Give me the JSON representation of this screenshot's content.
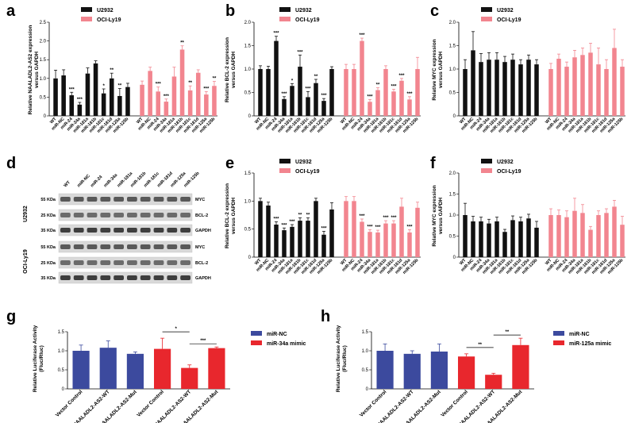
{
  "figure": {
    "panel_labels": [
      "a",
      "b",
      "c",
      "d",
      "e",
      "f",
      "g",
      "h"
    ]
  },
  "colors": {
    "u2932": "#111111",
    "ocily19": "#f2858f",
    "mirnc": "#3c4a9e",
    "mimic": "#e8272d"
  },
  "western_blot": {
    "lanes": [
      "WT",
      "miR-NC",
      "miR-24",
      "miR-34a",
      "miR-181a",
      "miR-181b",
      "miR-181c",
      "miR-181d",
      "miR-125a",
      "miR-125b"
    ],
    "groups": [
      {
        "name": "U2932",
        "rows": [
          {
            "kda": "55 KDa",
            "protein": "MYC"
          },
          {
            "kda": "25 KDa",
            "protein": "BCL-2"
          },
          {
            "kda": "35 KDa",
            "protein": "GAPDH"
          }
        ]
      },
      {
        "name": "OCI-Ly19",
        "rows": [
          {
            "kda": "55 KDa",
            "protein": "MYC"
          },
          {
            "kda": "25 KDa",
            "protein": "BCL-2"
          },
          {
            "kda": "35 KDa",
            "protein": "GAPDH"
          }
        ]
      }
    ]
  },
  "chart_data": [
    {
      "panel": "a",
      "type": "bar",
      "ylabel": "Relative NAALADL2-AS2 expression versus GAPDH",
      "ylim": [
        0,
        2.5
      ],
      "yticks": [
        0,
        0.5,
        1.0,
        1.5,
        2.0,
        2.5
      ],
      "legend": [
        "U2932",
        "OCI-Ly19"
      ],
      "categories": [
        "WT",
        "miR-NC",
        "miR-24",
        "miR-34a",
        "miR-181a",
        "miR-181b",
        "miR-181c",
        "miR-181d",
        "miR-125a",
        "miR-125b"
      ],
      "series": [
        {
          "name": "U2932",
          "values": [
            1.0,
            1.08,
            0.55,
            0.3,
            1.13,
            1.4,
            0.6,
            1.0,
            0.53,
            0.77
          ],
          "errors": [
            0.22,
            0.15,
            0.08,
            0.06,
            0.15,
            0.07,
            0.12,
            0.14,
            0.2,
            0.1
          ],
          "sig": [
            "",
            "",
            "***",
            "***",
            "",
            "",
            "*",
            "**",
            "**",
            ""
          ]
        },
        {
          "name": "OCI-Ly19",
          "values": [
            0.83,
            1.2,
            0.65,
            0.38,
            1.05,
            1.77,
            0.68,
            1.15,
            0.57,
            0.8
          ],
          "errors": [
            0.1,
            0.1,
            0.12,
            0.07,
            0.25,
            0.1,
            0.12,
            0.08,
            0.08,
            0.12
          ],
          "sig": [
            "",
            "",
            "***",
            "***",
            "",
            "**",
            "**",
            "",
            "***",
            "**"
          ]
        }
      ]
    },
    {
      "panel": "b",
      "type": "bar",
      "ylabel": "Relative BCL-2 expression versus GAPDH",
      "ylim": [
        0,
        2.0
      ],
      "yticks": [
        0,
        0.5,
        1.0,
        1.5,
        2.0
      ],
      "legend": [
        "U2932",
        "OCI-Ly19"
      ],
      "categories": [
        "WT",
        "miR-NC",
        "miR-24",
        "miR-34a",
        "miR-181a",
        "miR-181b",
        "miR-181c",
        "miR-181d",
        "miR-125a",
        "miR-125b"
      ],
      "series": [
        {
          "name": "U2932",
          "values": [
            1.0,
            1.0,
            1.6,
            0.36,
            0.64,
            1.05,
            0.4,
            0.7,
            0.32,
            1.0
          ],
          "errors": [
            0.07,
            0.06,
            0.1,
            0.05,
            0.05,
            0.25,
            0.12,
            0.08,
            0.05,
            0.05
          ],
          "sig": [
            "",
            "",
            "***",
            "***",
            "*",
            "***",
            "***",
            "**",
            "***",
            ""
          ]
        },
        {
          "name": "OCI-Ly19",
          "values": [
            1.0,
            1.0,
            1.6,
            0.3,
            0.55,
            1.0,
            0.52,
            0.75,
            0.35,
            1.0
          ],
          "errors": [
            0.1,
            0.1,
            0.06,
            0.05,
            0.05,
            0.07,
            0.05,
            0.05,
            0.06,
            0.25
          ],
          "sig": [
            "",
            "",
            "***",
            "***",
            "**",
            "",
            "***",
            "***",
            "***",
            ""
          ]
        }
      ]
    },
    {
      "panel": "c",
      "type": "bar",
      "ylabel": "Relative MYC expression versus GAPDH",
      "ylim": [
        0,
        2.0
      ],
      "yticks": [
        0,
        0.5,
        1.0,
        1.5,
        2.0
      ],
      "legend": [
        "U2932",
        "OCI-Ly19"
      ],
      "categories": [
        "WT",
        "miR-NC",
        "miR-24",
        "miR-34a",
        "miR-181a",
        "miR-181b",
        "miR-181c",
        "miR-181d",
        "miR-125a",
        "miR-125b"
      ],
      "series": [
        {
          "name": "U2932",
          "values": [
            1.0,
            1.4,
            1.15,
            1.2,
            1.2,
            1.15,
            1.2,
            1.1,
            1.2,
            1.1
          ],
          "errors": [
            0.2,
            0.4,
            0.18,
            0.15,
            0.15,
            0.12,
            0.12,
            0.1,
            0.1,
            0.1
          ],
          "sig": [
            "",
            "",
            "",
            "",
            "",
            "",
            "",
            "",
            "",
            ""
          ]
        },
        {
          "name": "OCI-Ly19",
          "values": [
            1.0,
            1.22,
            1.05,
            1.25,
            1.3,
            1.35,
            1.1,
            1.0,
            1.45,
            1.05
          ],
          "errors": [
            0.12,
            0.1,
            0.1,
            0.15,
            0.15,
            0.2,
            0.35,
            0.2,
            0.4,
            0.15
          ],
          "sig": [
            "",
            "",
            "",
            "",
            "",
            "",
            "",
            "",
            "",
            ""
          ]
        }
      ]
    },
    {
      "panel": "e",
      "type": "bar",
      "ylabel": "Relative BCL-2 expression versus GAPDH",
      "ylim": [
        0,
        1.5
      ],
      "yticks": [
        0,
        0.5,
        1.0,
        1.5
      ],
      "legend": [
        "U2932",
        "OCI-Ly19"
      ],
      "categories": [
        "WT",
        "miR-NC",
        "miR-24",
        "miR-34a",
        "miR-181a",
        "miR-181b",
        "miR-181c",
        "miR-181d",
        "miR-125a",
        "miR-125b"
      ],
      "series": [
        {
          "name": "U2932",
          "values": [
            1.0,
            0.92,
            0.58,
            0.48,
            0.54,
            0.65,
            0.65,
            1.0,
            0.4,
            0.85
          ],
          "errors": [
            0.05,
            0.06,
            0.05,
            0.04,
            0.04,
            0.05,
            0.05,
            0.05,
            0.06,
            0.12
          ],
          "sig": [
            "",
            "",
            "***",
            "***",
            "***",
            "**",
            "**",
            "",
            "***",
            ""
          ]
        },
        {
          "name": "OCI-Ly19",
          "values": [
            1.0,
            1.0,
            0.63,
            0.45,
            0.44,
            0.6,
            0.6,
            0.9,
            0.44,
            0.88
          ],
          "errors": [
            0.08,
            0.08,
            0.05,
            0.04,
            0.04,
            0.05,
            0.05,
            0.15,
            0.05,
            0.1
          ],
          "sig": [
            "",
            "",
            "***",
            "***",
            "***",
            "***",
            "***",
            "",
            "***",
            ""
          ]
        }
      ]
    },
    {
      "panel": "f",
      "type": "bar",
      "ylabel": "Relative MYC expression versus GAPDH",
      "ylim": [
        0,
        2.0
      ],
      "yticks": [
        0,
        0.5,
        1.0,
        1.5,
        2.0
      ],
      "legend": [
        "U2932",
        "OCI-Ly19"
      ],
      "categories": [
        "WT",
        "miR-NC",
        "miR-24",
        "miR-34a",
        "miR-181a",
        "miR-181b",
        "miR-181c",
        "miR-181d",
        "miR-125a",
        "miR-125b"
      ],
      "series": [
        {
          "name": "U2932",
          "values": [
            1.0,
            0.85,
            0.85,
            0.8,
            0.85,
            0.6,
            0.88,
            0.85,
            0.92,
            0.7
          ],
          "errors": [
            0.28,
            0.12,
            0.1,
            0.1,
            0.1,
            0.06,
            0.1,
            0.1,
            0.1,
            0.15
          ],
          "sig": [
            "",
            "",
            "",
            "",
            "",
            "",
            "",
            "",
            "",
            ""
          ]
        },
        {
          "name": "OCI-Ly19",
          "values": [
            1.0,
            1.0,
            0.95,
            1.1,
            1.05,
            0.65,
            1.0,
            1.05,
            1.2,
            0.77
          ],
          "errors": [
            0.15,
            0.12,
            0.15,
            0.3,
            0.2,
            0.08,
            0.1,
            0.1,
            0.15,
            0.2
          ],
          "sig": [
            "",
            "",
            "",
            "",
            "",
            "",
            "",
            "",
            "",
            ""
          ]
        }
      ]
    },
    {
      "panel": "g",
      "type": "bar",
      "ylabel": "Relative Luciferase Activity (Fluc/Rluc)",
      "ylim": [
        0,
        1.5
      ],
      "yticks": [
        0,
        0.5,
        1.0,
        1.5
      ],
      "legend": [
        "miR-NC",
        "miR-34a mimic"
      ],
      "categories": [
        "Vector Control",
        "NAALADL2-AS2-WT",
        "NAALADL2-AS2-Mut"
      ],
      "series": [
        {
          "name": "miR-NC",
          "values": [
            1.0,
            1.08,
            0.92
          ],
          "errors": [
            0.15,
            0.18,
            0.05
          ]
        },
        {
          "name": "miR-34a mimic",
          "values": [
            1.05,
            0.55,
            1.07
          ],
          "errors": [
            0.28,
            0.08,
            0.03
          ]
        }
      ],
      "annotations": [
        {
          "from": 0,
          "to": 1,
          "text": "*"
        },
        {
          "from": 1,
          "to": 2,
          "text": "***"
        }
      ]
    },
    {
      "panel": "h",
      "type": "bar",
      "ylabel": "Relative Luciferase Activity (Fluc/Rluc)",
      "ylim": [
        0,
        1.5
      ],
      "yticks": [
        0,
        0.5,
        1.0,
        1.5
      ],
      "legend": [
        "miR-NC",
        "miR-125a mimic"
      ],
      "categories": [
        "Vector Control",
        "NAALADL2-AS2-WT",
        "NAALADL2-AS2-Mut"
      ],
      "series": [
        {
          "name": "miR-NC",
          "values": [
            1.0,
            0.92,
            0.98
          ],
          "errors": [
            0.18,
            0.08,
            0.2
          ]
        },
        {
          "name": "miR-125a mimic",
          "values": [
            0.85,
            0.37,
            1.15
          ],
          "errors": [
            0.07,
            0.04,
            0.18
          ]
        }
      ],
      "annotations": [
        {
          "from": 0,
          "to": 1,
          "text": "**"
        },
        {
          "from": 1,
          "to": 2,
          "text": "**"
        }
      ]
    }
  ]
}
